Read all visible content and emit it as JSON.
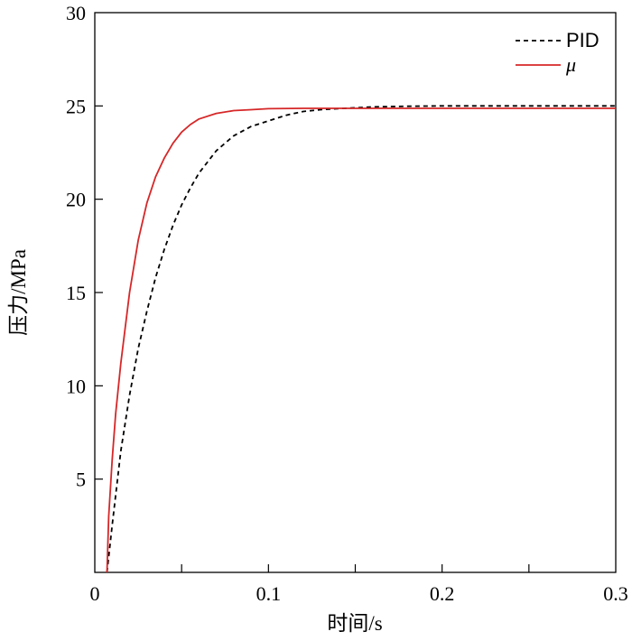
{
  "chart_data": {
    "type": "line",
    "title": "",
    "xlabel": "时间/s",
    "ylabel": "压力/MPa",
    "xlim": [
      0,
      0.3
    ],
    "ylim": [
      0,
      30
    ],
    "xticks": [
      0,
      0.1,
      0.2,
      0.3
    ],
    "xtick_labels": [
      "0",
      "0.1",
      "0.2",
      "0.3"
    ],
    "yticks": [
      5,
      10,
      15,
      20,
      25,
      30
    ],
    "ytick_labels": [
      "5",
      "10",
      "15",
      "20",
      "25",
      "30"
    ],
    "x_minor_ticks": [
      0.05,
      0.15,
      0.25
    ],
    "grid": false,
    "legend_position": "top-right",
    "series": [
      {
        "name": "PID",
        "style": "dashed",
        "color": "#000000",
        "x": [
          0.007,
          0.01,
          0.015,
          0.02,
          0.025,
          0.03,
          0.035,
          0.04,
          0.045,
          0.05,
          0.055,
          0.06,
          0.07,
          0.08,
          0.09,
          0.1,
          0.11,
          0.12,
          0.13,
          0.14,
          0.15,
          0.16,
          0.18,
          0.2,
          0.25,
          0.3
        ],
        "y": [
          0,
          2.5,
          6.5,
          9.5,
          12.0,
          14.0,
          15.8,
          17.3,
          18.6,
          19.7,
          20.6,
          21.4,
          22.6,
          23.4,
          23.9,
          24.2,
          24.5,
          24.7,
          24.8,
          24.85,
          24.9,
          24.95,
          24.98,
          25.0,
          25.0,
          25.0
        ]
      },
      {
        "name": "μ",
        "style": "solid",
        "color": "#d62728",
        "x": [
          0.007,
          0.008,
          0.01,
          0.012,
          0.015,
          0.02,
          0.025,
          0.03,
          0.035,
          0.04,
          0.045,
          0.05,
          0.055,
          0.06,
          0.07,
          0.08,
          0.09,
          0.1,
          0.12,
          0.15,
          0.2,
          0.25,
          0.3
        ],
        "y": [
          0,
          3.0,
          6.0,
          8.5,
          11.2,
          15.0,
          17.8,
          19.8,
          21.2,
          22.2,
          23.0,
          23.6,
          24.0,
          24.3,
          24.6,
          24.75,
          24.8,
          24.85,
          24.87,
          24.87,
          24.87,
          24.87,
          24.87
        ]
      }
    ]
  }
}
